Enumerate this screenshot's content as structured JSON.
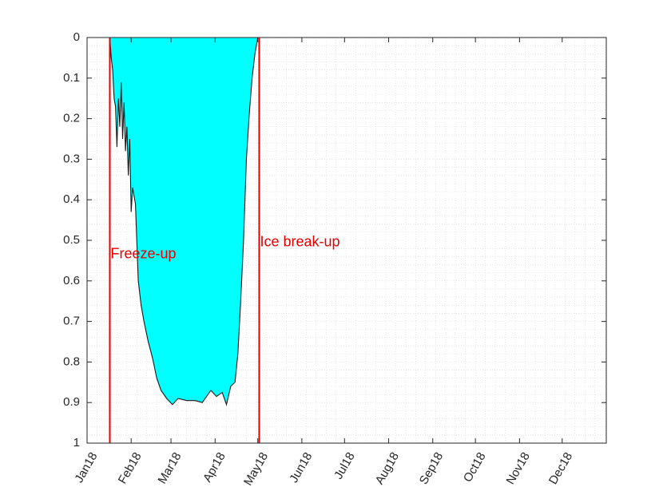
{
  "chart_data": {
    "type": "area",
    "title": "",
    "xlabel": "",
    "ylabel": "",
    "x_axis": "date",
    "xlim": [
      "2018-01-01",
      "2019-01-01"
    ],
    "ylim": [
      0,
      1
    ],
    "y_reversed": true,
    "grid": "minor dotted",
    "x_ticks": [
      {
        "date": "2018-01-01",
        "label": "Jan18"
      },
      {
        "date": "2018-02-01",
        "label": "Feb18"
      },
      {
        "date": "2018-03-01",
        "label": "Mar18"
      },
      {
        "date": "2018-04-01",
        "label": "Apr18"
      },
      {
        "date": "2018-05-01",
        "label": "May18"
      },
      {
        "date": "2018-06-01",
        "label": "Jun18"
      },
      {
        "date": "2018-07-01",
        "label": "Jul18"
      },
      {
        "date": "2018-08-01",
        "label": "Aug18"
      },
      {
        "date": "2018-09-01",
        "label": "Sep18"
      },
      {
        "date": "2018-10-01",
        "label": "Oct18"
      },
      {
        "date": "2018-11-01",
        "label": "Nov18"
      },
      {
        "date": "2018-12-01",
        "label": "Dec18"
      }
    ],
    "y_ticks": [
      {
        "value": 0,
        "label": "0"
      },
      {
        "value": 0.1,
        "label": "0.1"
      },
      {
        "value": 0.2,
        "label": "0.2"
      },
      {
        "value": 0.3,
        "label": "0.3"
      },
      {
        "value": 0.4,
        "label": "0.4"
      },
      {
        "value": 0.5,
        "label": "0.5"
      },
      {
        "value": 0.6,
        "label": "0.6"
      },
      {
        "value": 0.7,
        "label": "0.7"
      },
      {
        "value": 0.8,
        "label": "0.8"
      },
      {
        "value": 0.9,
        "label": "0.9"
      },
      {
        "value": 1,
        "label": "1"
      }
    ],
    "series": [
      {
        "fill_color": "#00ffff",
        "line_color": "#1a1a1a",
        "points": [
          [
            "2018-01-17",
            0.0
          ],
          [
            "2018-01-18",
            0.05
          ],
          [
            "2018-01-19",
            0.08
          ],
          [
            "2018-01-20",
            0.15
          ],
          [
            "2018-01-21",
            0.17
          ],
          [
            "2018-01-22",
            0.27
          ],
          [
            "2018-01-23",
            0.15
          ],
          [
            "2018-01-24",
            0.22
          ],
          [
            "2018-01-25",
            0.11
          ],
          [
            "2018-01-26",
            0.25
          ],
          [
            "2018-01-27",
            0.16
          ],
          [
            "2018-01-28",
            0.28
          ],
          [
            "2018-01-29",
            0.22
          ],
          [
            "2018-01-30",
            0.34
          ],
          [
            "2018-01-31",
            0.25
          ],
          [
            "2018-02-01",
            0.43
          ],
          [
            "2018-02-02",
            0.37
          ],
          [
            "2018-02-04",
            0.41
          ],
          [
            "2018-02-06",
            0.6
          ],
          [
            "2018-02-08",
            0.66
          ],
          [
            "2018-02-10",
            0.7
          ],
          [
            "2018-02-13",
            0.75
          ],
          [
            "2018-02-16",
            0.79
          ],
          [
            "2018-02-19",
            0.84
          ],
          [
            "2018-02-22",
            0.87
          ],
          [
            "2018-02-26",
            0.89
          ],
          [
            "2018-03-02",
            0.905
          ],
          [
            "2018-03-06",
            0.89
          ],
          [
            "2018-03-12",
            0.895
          ],
          [
            "2018-03-18",
            0.895
          ],
          [
            "2018-03-23",
            0.9
          ],
          [
            "2018-03-26",
            0.885
          ],
          [
            "2018-03-29",
            0.87
          ],
          [
            "2018-04-02",
            0.885
          ],
          [
            "2018-04-06",
            0.875
          ],
          [
            "2018-04-09",
            0.905
          ],
          [
            "2018-04-12",
            0.86
          ],
          [
            "2018-04-15",
            0.85
          ],
          [
            "2018-04-17",
            0.78
          ],
          [
            "2018-04-19",
            0.65
          ],
          [
            "2018-04-21",
            0.5
          ],
          [
            "2018-04-23",
            0.3
          ],
          [
            "2018-04-25",
            0.19
          ],
          [
            "2018-04-27",
            0.1
          ],
          [
            "2018-04-29",
            0.04
          ],
          [
            "2018-05-01",
            0.0
          ]
        ]
      }
    ],
    "vlines": [
      {
        "date": "2018-01-17",
        "label": "Freeze-up",
        "color": "#e60000",
        "label_depth": 0.535
      },
      {
        "date": "2018-05-02",
        "label": "Ice break-up",
        "color": "#e60000",
        "label_depth": 0.505
      }
    ]
  }
}
